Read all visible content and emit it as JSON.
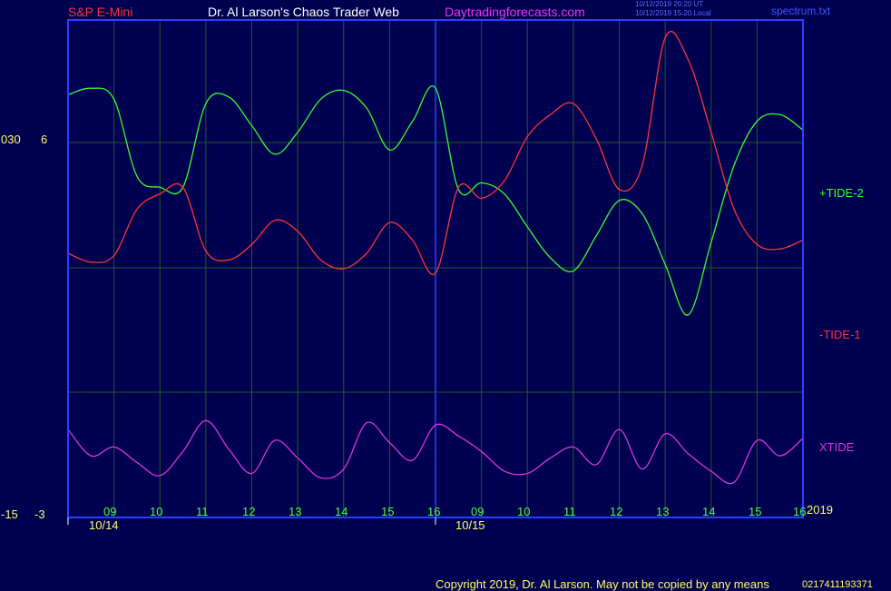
{
  "header": {
    "symbol": "S&P E-Mini",
    "title": "Dr. Al Larson's Chaos Trader Web",
    "site": "Daytradingforecasts.com",
    "timestamp_ut": "10/12/2019 20:20 UT",
    "timestamp_local": "10/12/2019 15:20 Local",
    "file": "spectrum.txt"
  },
  "footer": {
    "copyright": "Copyright 2019, Dr. Al Larson. May not be copied by any means",
    "code": "0217411193371"
  },
  "colors": {
    "background": "#000050",
    "frame": "#2a40ff",
    "grid": "#235a23",
    "tide_plus": "#33ff33",
    "tide_minus": "#ff3333",
    "xtide": "#dd33dd",
    "hour_labels": "#44ff44",
    "axis_text": "#ffff66"
  },
  "chart_data": {
    "type": "line",
    "x_unit": "hour",
    "x": [
      8.0,
      8.5,
      9.0,
      9.5,
      10.0,
      10.5,
      11.0,
      11.5,
      12.0,
      12.5,
      13.0,
      13.5,
      14.0,
      14.5,
      15.0,
      15.5,
      16.0,
      16.5,
      17.0,
      17.5,
      18.0,
      18.5,
      19.0,
      19.5,
      20.0,
      20.5,
      21.0,
      21.5,
      22.0,
      22.5,
      23.0,
      23.5,
      24.0
    ],
    "days": [
      "10/14",
      "10/15"
    ],
    "hour_ticks": [
      "09",
      "10",
      "11",
      "12",
      "13",
      "14",
      "15",
      "16",
      "09",
      "10",
      "11",
      "12",
      "13",
      "14",
      "15",
      "16"
    ],
    "left_axis_labels": {
      "top": "030",
      "mid": "6",
      "bottom_a": "-15",
      "bottom_b": "-3"
    },
    "year_label": "2019",
    "series": [
      {
        "name": "+TIDE-2",
        "values": [
          4.2,
          4.5,
          4.0,
          0.5,
          0.0,
          0.0,
          3.8,
          4.1,
          2.8,
          1.5,
          2.5,
          4.0,
          4.4,
          3.6,
          1.7,
          3.0,
          4.5,
          -0.1,
          0.2,
          -0.3,
          -1.8,
          -3.2,
          -3.8,
          -2.2,
          -0.6,
          -1.2,
          -3.5,
          -5.8,
          -2.5,
          1.0,
          3.0,
          3.3,
          2.6
        ]
      },
      {
        "name": "-TIDE-1",
        "values": [
          -3.0,
          -3.4,
          -3.1,
          -1.0,
          -0.3,
          0.0,
          -2.9,
          -3.3,
          -2.6,
          -1.5,
          -2.0,
          -3.3,
          -3.7,
          -3.0,
          -1.6,
          -2.4,
          -3.9,
          0.0,
          -0.5,
          0.3,
          2.3,
          3.3,
          3.8,
          2.2,
          -0.1,
          1.0,
          6.8,
          5.8,
          2.5,
          -1.0,
          -2.6,
          -2.8,
          -2.4
        ]
      },
      {
        "name": "XTIDE",
        "values": [
          -11.0,
          -12.2,
          -11.8,
          -12.5,
          -13.1,
          -12.0,
          -10.6,
          -11.9,
          -13.0,
          -11.5,
          -12.3,
          -13.2,
          -12.8,
          -10.7,
          -11.6,
          -12.4,
          -10.8,
          -11.3,
          -12.0,
          -12.9,
          -13.0,
          -12.3,
          -11.8,
          -12.6,
          -11.0,
          -12.8,
          -11.2,
          -12.1,
          -12.9,
          -13.4,
          -11.5,
          -12.2,
          -11.4
        ]
      }
    ]
  }
}
